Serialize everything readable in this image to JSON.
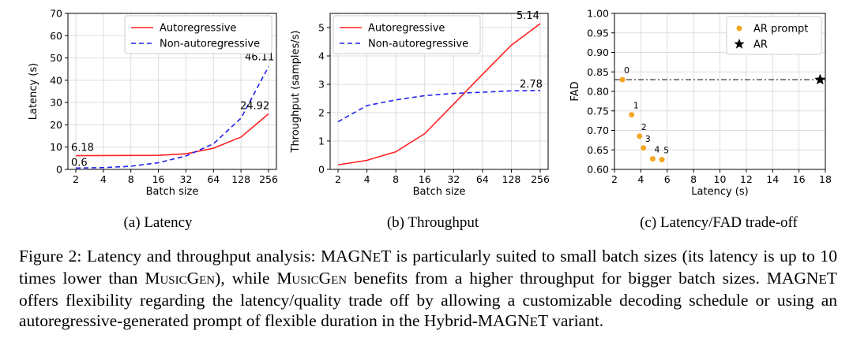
{
  "chart_data": [
    {
      "type": "line",
      "subcaption": "(a) Latency",
      "xlabel": "Batch size",
      "ylabel": "Latency (s)",
      "categories": [
        "2",
        "4",
        "8",
        "16",
        "32",
        "64",
        "128",
        "256"
      ],
      "ylim": [
        0,
        70
      ],
      "yticks": [
        "0",
        "10",
        "20",
        "30",
        "40",
        "50",
        "60",
        "70"
      ],
      "grid": true,
      "legend_position": "top-center",
      "series": [
        {
          "name": "Autoregressive",
          "color": "#ff2222",
          "style": "solid",
          "values": [
            6.18,
            6.2,
            6.25,
            6.3,
            7.0,
            9.5,
            14.5,
            24.92
          ]
        },
        {
          "name": "Non-autoregressive",
          "color": "#2222ee",
          "style": "dashed",
          "values": [
            0.6,
            0.8,
            1.4,
            3.0,
            6.0,
            11.5,
            23.0,
            46.11
          ]
        }
      ],
      "annotations": [
        "6.18",
        "0.6",
        "24.92",
        "46.11"
      ]
    },
    {
      "type": "line",
      "subcaption": "(b) Throughput",
      "xlabel": "Batch size",
      "ylabel": "Throughput (samples/s)",
      "categories": [
        "2",
        "4",
        "8",
        "16",
        "32",
        "64",
        "128",
        "256"
      ],
      "ylim": [
        0,
        5.5
      ],
      "yticks": [
        "0",
        "1",
        "2",
        "3",
        "4",
        "5"
      ],
      "grid": true,
      "legend_position": "top-left",
      "series": [
        {
          "name": "Autoregressive",
          "color": "#ff2222",
          "style": "solid",
          "values": [
            0.16,
            0.32,
            0.62,
            1.26,
            2.3,
            3.35,
            4.38,
            5.14
          ]
        },
        {
          "name": "Non-autoregressive",
          "color": "#2222ee",
          "style": "dashed",
          "values": [
            1.68,
            2.25,
            2.45,
            2.6,
            2.68,
            2.72,
            2.77,
            2.78
          ]
        }
      ],
      "annotations": [
        "5.14",
        "2.78"
      ]
    },
    {
      "type": "scatter",
      "subcaption": "(c) Latency/FAD trade-off",
      "xlabel": "Latency (s)",
      "ylabel": "FAD",
      "xlim": [
        2,
        18
      ],
      "ylim": [
        0.6,
        1.0
      ],
      "xticks": [
        "2",
        "4",
        "6",
        "8",
        "10",
        "12",
        "14",
        "16",
        "18"
      ],
      "yticks": [
        "0.60",
        "0.65",
        "0.70",
        "0.75",
        "0.80",
        "0.85",
        "0.90",
        "0.95",
        "1.00"
      ],
      "grid": true,
      "legend_position": "top-right",
      "series": [
        {
          "name": "AR prompt",
          "color": "#f5a623",
          "marker": "circle",
          "points": [
            [
              2.6,
              0.83,
              "0"
            ],
            [
              3.3,
              0.74,
              "1"
            ],
            [
              3.9,
              0.685,
              "2"
            ],
            [
              4.2,
              0.655,
              "3"
            ],
            [
              4.9,
              0.627,
              "4"
            ],
            [
              5.6,
              0.625,
              "5"
            ]
          ]
        },
        {
          "name": "AR",
          "color": "#000000",
          "marker": "star",
          "points": [
            [
              17.6,
              0.83,
              ""
            ]
          ]
        }
      ],
      "reference_line": {
        "y": 0.83,
        "style": "dash-dot"
      }
    }
  ],
  "caption": {
    "part1": "Figure 2: Latency and throughput analysis: MAGN",
    "part2": "E",
    "part3": "T is particularly suited to small batch sizes (its latency is up to 10 times lower than ",
    "musicgen1": "MusicGen",
    "part4": "), while ",
    "musicgen2": "MusicGen",
    "part5": " benefits from a higher throughput for bigger batch sizes. MAGN",
    "part6": "E",
    "part7": "T offers flexibility regarding the latency/quality trade off by allowing a customizable decoding schedule or using an autoregressive-generated prompt of flexible duration in the Hybrid-MAGN",
    "part8": "E",
    "part9": "T variant."
  }
}
